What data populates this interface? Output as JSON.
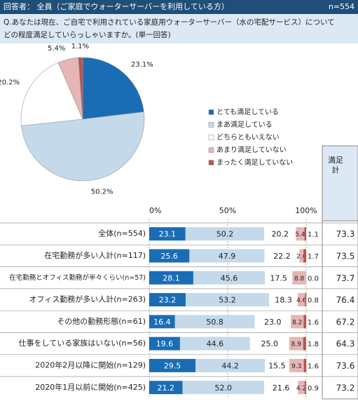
{
  "header": {
    "title": "回答者： 全員（ご家庭でウォーターサーバーを利用している方）",
    "n": "n=554"
  },
  "question": {
    "line1": "Q.あなたは現在、ご自宅で利用されている家庭用ウォーターサーバー（水の宅配サービス）について",
    "line2": "どの程度満足していらっしゃいますか。(単一回答)"
  },
  "chart_data": [
    {
      "type": "pie",
      "values": [
        23.1,
        50.2,
        20.2,
        5.4,
        1.1
      ],
      "value_labels": [
        "23.1%",
        "50.2%",
        "20.2%",
        "5.4%",
        "1.1%"
      ],
      "categories": [
        "とても満足している",
        "まあ満足している",
        "どちらともいえない",
        "あまり満足していない",
        "まったく満足していない"
      ],
      "colors": [
        "#1a6db5",
        "#c4d9ea",
        "#ffffff",
        "#e6b5b5",
        "#c0504d"
      ]
    },
    {
      "type": "stacked_bar",
      "orientation": "horizontal",
      "xlim": [
        0,
        100
      ],
      "xticks": [
        {
          "value": 0,
          "label": "0%"
        },
        {
          "value": 50,
          "label": "50%"
        },
        {
          "value": 100,
          "label": "100%"
        }
      ],
      "grid": true,
      "categories": [
        "全体(n=554)",
        "在宅勤務が多い人計(n=117)",
        "在宅勤務とオフィス勤務が半々くらい(n=57)",
        "オフィス勤務が多い人計(n=263)",
        "その他の勤務形態(n=61)",
        "仕事をしている家族はいない(n=56)",
        "2020年2月以降に開始(n=129)",
        "2020年1月以前に開始(n=425)"
      ],
      "series": [
        {
          "name": "とても満足している",
          "color": "#1a6db5",
          "values": [
            23.1,
            25.6,
            28.1,
            23.2,
            16.4,
            19.6,
            29.5,
            21.2
          ],
          "value_labels": [
            "23.1",
            "25.6",
            "28.1",
            "23.2",
            "16.4",
            "19.6",
            "29.5",
            "21.2"
          ]
        },
        {
          "name": "まあ満足している",
          "color": "#c4d9ea",
          "values": [
            50.2,
            47.9,
            45.6,
            53.2,
            50.8,
            44.6,
            44.2,
            52.0
          ],
          "value_labels": [
            "50.2",
            "47.9",
            "45.6",
            "53.2",
            "50.8",
            "44.6",
            "44.2",
            "52.0"
          ]
        },
        {
          "name": "どちらともいえない",
          "color": "#ffffff",
          "values": [
            20.2,
            22.2,
            17.5,
            18.3,
            23.0,
            25.0,
            15.5,
            21.6
          ],
          "value_labels": [
            "20.2",
            "22.2",
            "17.5",
            "18.3",
            "23.0",
            "25.0",
            "15.5",
            "21.6"
          ]
        },
        {
          "name": "あまり満足していない",
          "color": "#e6b5b5",
          "values": [
            5.4,
            2.6,
            8.8,
            4.6,
            8.2,
            8.9,
            9.3,
            4.2
          ],
          "value_labels": [
            "5.4",
            "2.6",
            "8.8",
            "4.6",
            "8.2",
            "8.9",
            "9.3",
            "4.2"
          ]
        },
        {
          "name": "まったく満足していない",
          "color": "#c0504d",
          "values": [
            1.1,
            1.7,
            0.0,
            0.8,
            1.6,
            1.8,
            1.6,
            0.9
          ],
          "value_labels": [
            "1.1",
            "1.7",
            "0.0",
            "0.8",
            "1.6",
            "1.8",
            "1.6",
            "0.9"
          ]
        }
      ],
      "total": {
        "label": "満足計",
        "values": [
          73.3,
          73.5,
          73.7,
          76.4,
          67.2,
          64.3,
          73.6,
          73.2
        ]
      }
    }
  ]
}
